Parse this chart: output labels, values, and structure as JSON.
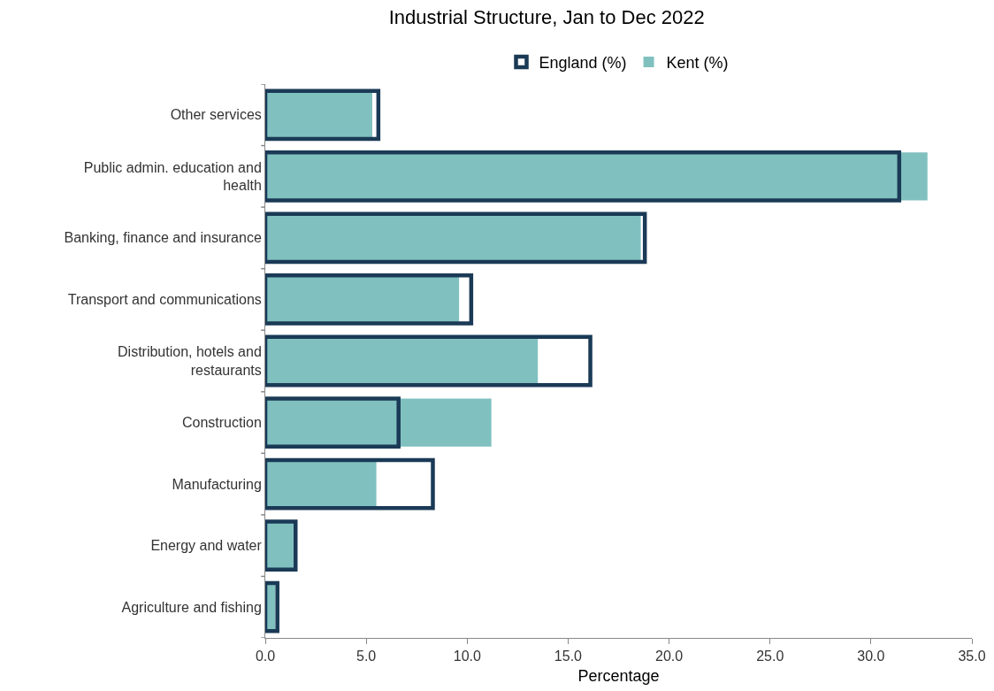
{
  "chart_data": {
    "type": "bar",
    "orientation": "horizontal",
    "title": "Industrial Structure, Jan to Dec 2022",
    "xlabel": "Percentage",
    "categories": [
      "Other services",
      "Public admin. education and health",
      "Banking, finance and insurance",
      "Transport and communications",
      "Distribution, hotels and restaurants",
      "Construction",
      "Manufacturing",
      "Energy and water",
      "Agriculture and fishing"
    ],
    "series": [
      {
        "name": "England (%)",
        "color": "#1a3a56",
        "values": [
          5.6,
          31.4,
          18.8,
          10.2,
          16.1,
          6.6,
          8.3,
          1.5,
          0.6
        ]
      },
      {
        "name": "Kent (%)",
        "color": "#80c1c0",
        "values": [
          5.3,
          32.8,
          18.6,
          9.6,
          13.5,
          11.2,
          5.5,
          1.4,
          0.5
        ]
      }
    ],
    "xlim": [
      0,
      35
    ],
    "xticks": [
      {
        "value": 0,
        "label": "0.0"
      },
      {
        "value": 5,
        "label": "5.0"
      },
      {
        "value": 10,
        "label": "10.0"
      },
      {
        "value": 15,
        "label": "15.0"
      },
      {
        "value": 20,
        "label": "20.0"
      },
      {
        "value": 25,
        "label": "25.0"
      },
      {
        "value": 30,
        "label": "30.0"
      },
      {
        "value": 35,
        "label": "35.0"
      }
    ],
    "grid": false,
    "legend": "top"
  }
}
